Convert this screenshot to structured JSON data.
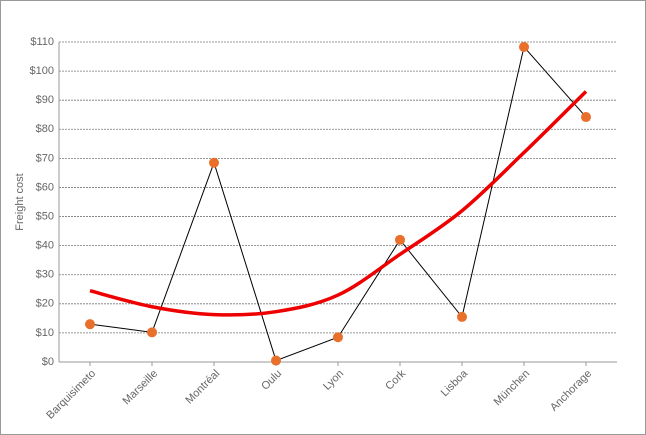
{
  "chart_data": {
    "type": "line",
    "y_label": "Freight cost",
    "categories": [
      "Barquisimeto",
      "Marseille",
      "Montréal",
      "Oulu",
      "Lyon",
      "Cork",
      "Lisboa",
      "München",
      "Anchorage"
    ],
    "series": [
      {
        "color": "#e8702a",
        "line_color": "#000000",
        "values": [
          13,
          10.2,
          68.5,
          0.5,
          8.5,
          42,
          15.5,
          108.3,
          84.2
        ]
      },
      {
        "color": "#ee0000",
        "trend": true,
        "values": [
          24.5,
          19,
          16.3,
          17.3,
          23,
          37,
          52,
          72,
          93
        ]
      }
    ],
    "ylim": [
      0,
      110
    ],
    "yticks": [
      {
        "value": 0,
        "label": "$0"
      },
      {
        "value": 10,
        "label": "$10"
      },
      {
        "value": 20,
        "label": "$20"
      },
      {
        "value": 30,
        "label": "$30"
      },
      {
        "value": 40,
        "label": "$40"
      },
      {
        "value": 50,
        "label": "$50"
      },
      {
        "value": 60,
        "label": "$60"
      },
      {
        "value": 70,
        "label": "$70"
      },
      {
        "value": 80,
        "label": "$80"
      },
      {
        "value": 90,
        "label": "$90"
      },
      {
        "value": 100,
        "label": "$100"
      },
      {
        "value": 110,
        "label": "$110"
      }
    ],
    "grid": true
  }
}
